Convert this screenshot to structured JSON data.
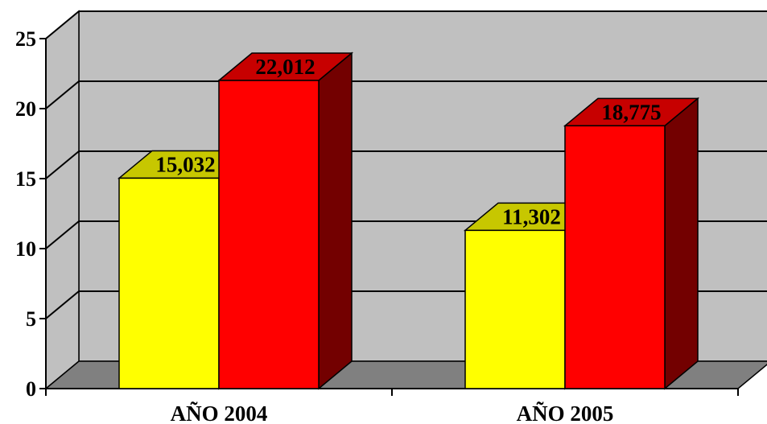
{
  "chart_data": {
    "type": "bar",
    "style": "3d-clustered-column",
    "categories": [
      "AÑO 2004",
      "AÑO 2005"
    ],
    "series": [
      {
        "values": [
          15.032,
          11.302
        ],
        "labels": [
          "15,032",
          "11,302"
        ],
        "color": "#ffff00"
      },
      {
        "values": [
          22.012,
          18.775
        ],
        "labels": [
          "22,012",
          "18,775"
        ],
        "color": "#ff0000"
      }
    ],
    "ylim": [
      0,
      25
    ],
    "yticks": [
      0,
      5,
      10,
      15,
      20,
      25
    ],
    "ytick_labels": [
      "0",
      "5",
      "10",
      "15",
      "20",
      "25"
    ],
    "grid": true,
    "legend": "none",
    "colors": {
      "back_wall": "#c0c0c0",
      "floor": "#808080",
      "gridline": "#000000"
    }
  }
}
